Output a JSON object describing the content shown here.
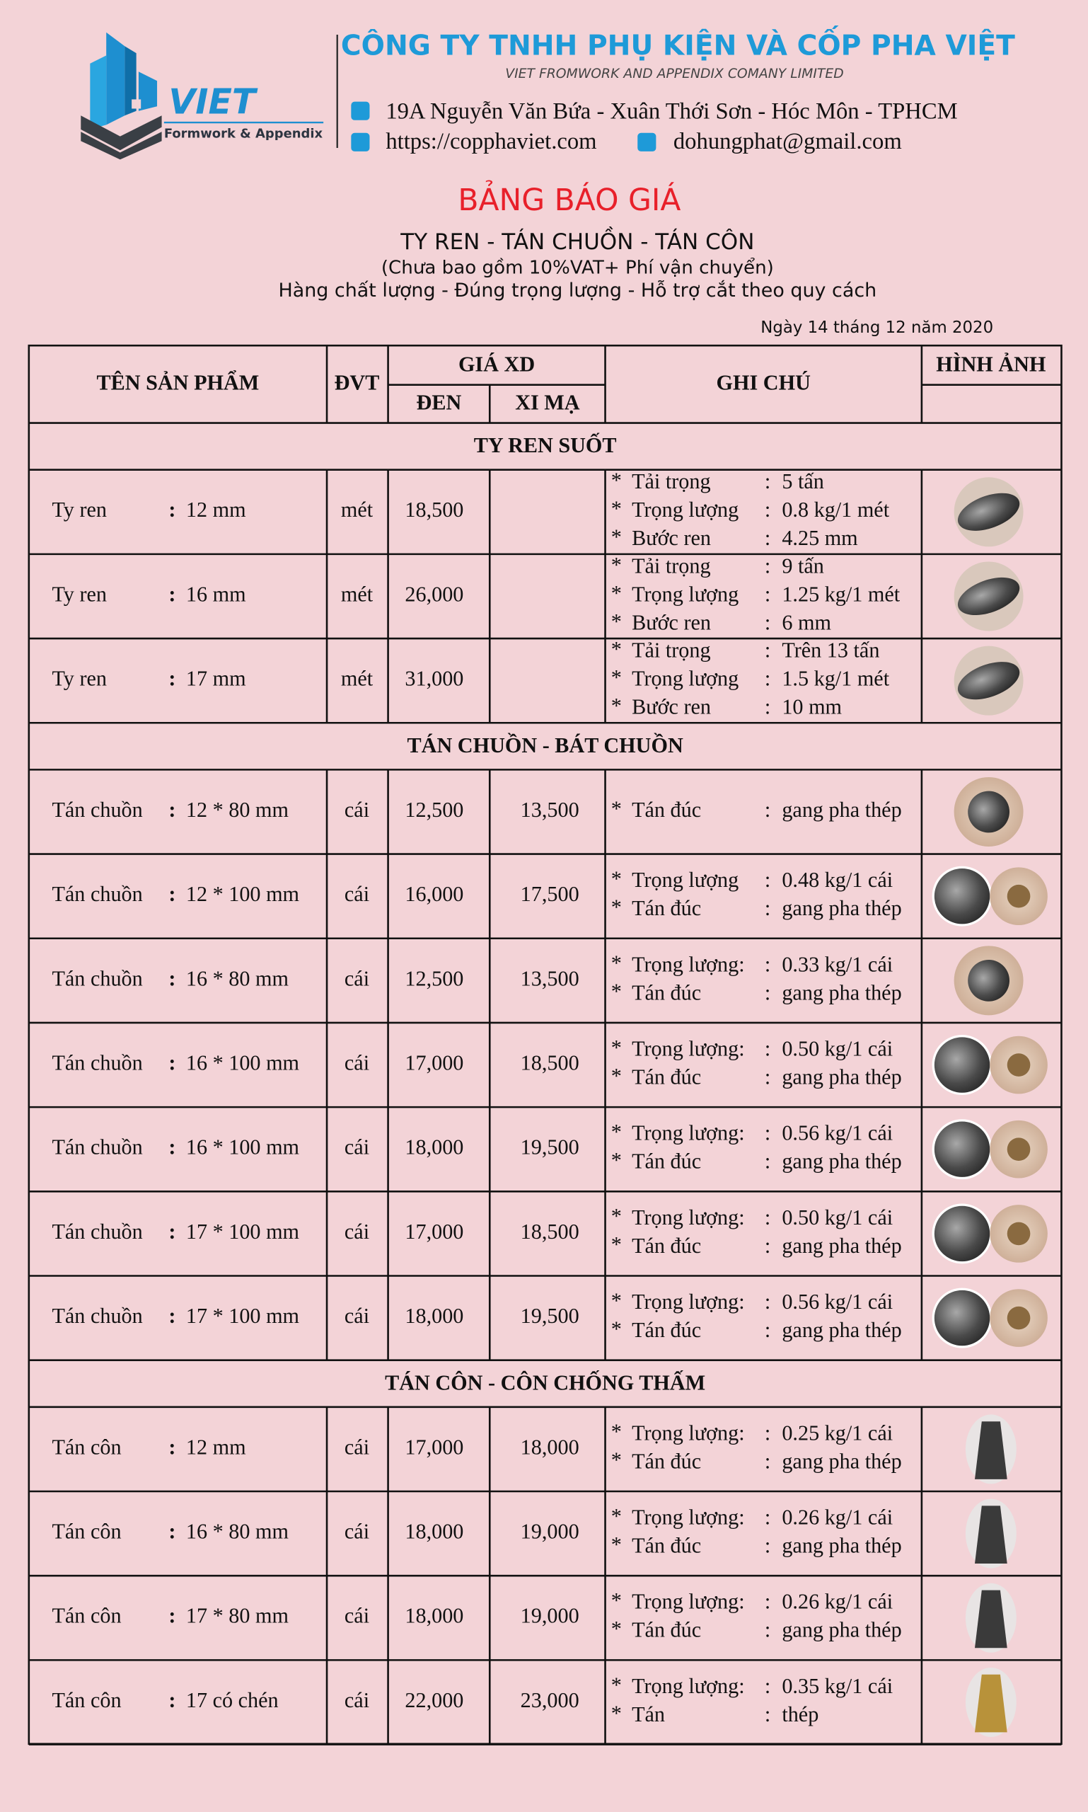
{
  "header": {
    "logo_text": "VIET",
    "logo_sub": "Formwork & Appendix",
    "company_name": "CÔNG TY TNHH PHỤ KIỆN VÀ CỐP PHA VIỆT",
    "company_name_en": "VIET FROMWORK AND APPENDIX COMANY LIMITED",
    "address": "19A Nguyễn Văn Bứa - Xuân Thới Sơn - Hóc Môn - TPHCM",
    "website": "https://copphaviet.com",
    "email": "dohungphat@gmail.com"
  },
  "title": "BẢNG BÁO GIÁ",
  "subtitle": "TY REN - TÁN CHUỒN - TÁN CÔN",
  "note": "(Chưa bao gồm 10%VAT+ Phí vận chuyển)",
  "tagline": "Hàng chất lượng - Đúng trọng lượng - Hỗ trợ cắt theo quy cách",
  "date": "Ngày 14 tháng 12 năm 2020",
  "table": {
    "headers": {
      "product": "TÊN SẢN PHẨM",
      "unit": "ĐVT",
      "price": "GIÁ XD",
      "black": "ĐEN",
      "plated": "XI MẠ",
      "note": "GHI CHÚ",
      "image": "HÌNH ẢNH"
    },
    "separator": ":",
    "bullet": "*",
    "sections": [
      {
        "title": "TY REN SUỐT",
        "rows": [
          {
            "name": "Ty ren",
            "spec": "12 mm",
            "unit": "mét",
            "black": "18,500",
            "plated": null,
            "notes": [
              {
                "label": "Tải trọng",
                "value": "5 tấn"
              },
              {
                "label": "Trọng lượng",
                "value": "0.8 kg/1 mét"
              },
              {
                "label": "Bước ren",
                "value": "4.25 mm"
              }
            ]
          },
          {
            "name": "Ty ren",
            "spec": "16 mm",
            "unit": "mét",
            "black": "26,000",
            "plated": null,
            "notes": [
              {
                "label": "Tải trọng",
                "value": "9 tấn"
              },
              {
                "label": "Trọng lượng",
                "value": "1.25 kg/1 mét"
              },
              {
                "label": "Bước ren",
                "value": "6 mm"
              }
            ]
          },
          {
            "name": "Ty ren",
            "spec": "17 mm",
            "unit": "mét",
            "black": "31,000",
            "plated": null,
            "notes": [
              {
                "label": "Tải trọng",
                "value": "Trên 13 tấn"
              },
              {
                "label": "Trọng lượng",
                "value": "1.5 kg/1 mét"
              },
              {
                "label": "Bước ren",
                "value": "10 mm"
              }
            ]
          }
        ]
      },
      {
        "title": "TÁN CHUỒN - BÁT CHUỒN",
        "rows": [
          {
            "name": "Tán chuồn",
            "spec": "12 * 80 mm",
            "unit": "cái",
            "black": "12,500",
            "plated": "13,500",
            "notes": [
              {
                "label": "Tán đúc",
                "value": "gang pha thép"
              }
            ]
          },
          {
            "name": "Tán chuồn",
            "spec": "12 * 100 mm",
            "unit": "cái",
            "black": "16,000",
            "plated": "17,500",
            "notes": [
              {
                "label": "Trọng lượng",
                "value": "0.48 kg/1 cái"
              },
              {
                "label": "Tán đúc",
                "value": "gang pha thép"
              }
            ]
          },
          {
            "name": "Tán chuồn",
            "spec": "16 * 80 mm",
            "unit": "cái",
            "black": "12,500",
            "plated": "13,500",
            "notes": [
              {
                "label": "Trọng lượng:",
                "value": "0.33 kg/1 cái"
              },
              {
                "label": "Tán đúc",
                "value": "gang pha thép"
              }
            ]
          },
          {
            "name": "Tán chuồn",
            "spec": "16 * 100 mm",
            "unit": "cái",
            "black": "17,000",
            "plated": "18,500",
            "notes": [
              {
                "label": "Trọng lượng:",
                "value": "0.50 kg/1 cái"
              },
              {
                "label": "Tán đúc",
                "value": "gang pha thép"
              }
            ]
          },
          {
            "name": "Tán chuồn",
            "spec": "16 * 100 mm",
            "unit": "cái",
            "black": "18,000",
            "plated": "19,500",
            "notes": [
              {
                "label": "Trọng lượng:",
                "value": "0.56 kg/1 cái"
              },
              {
                "label": "Tán đúc",
                "value": "gang pha thép"
              }
            ]
          },
          {
            "name": "Tán chuồn",
            "spec": "17 * 100 mm",
            "unit": "cái",
            "black": "17,000",
            "plated": "18,500",
            "notes": [
              {
                "label": "Trọng lượng:",
                "value": "0.50 kg/1 cái"
              },
              {
                "label": "Tán đúc",
                "value": "gang pha thép"
              }
            ]
          },
          {
            "name": "Tán chuồn",
            "spec": "17 * 100 mm",
            "unit": "cái",
            "black": "18,000",
            "plated": "19,500",
            "notes": [
              {
                "label": "Trọng lượng:",
                "value": "0.56 kg/1 cái"
              },
              {
                "label": "Tán đúc",
                "value": "gang pha thép"
              }
            ]
          }
        ]
      },
      {
        "title": "TÁN CÔN - CÔN CHỐNG THẤM",
        "rows": [
          {
            "name": "Tán côn",
            "spec": "12 mm",
            "unit": "cái",
            "black": "17,000",
            "plated": "18,000",
            "notes": [
              {
                "label": "Trọng lượng:",
                "value": "0.25 kg/1 cái"
              },
              {
                "label": "Tán đúc",
                "value": "gang pha thép"
              }
            ]
          },
          {
            "name": "Tán côn",
            "spec": "16 * 80 mm",
            "unit": "cái",
            "black": "18,000",
            "plated": "19,000",
            "notes": [
              {
                "label": "Trọng lượng:",
                "value": "0.26 kg/1 cái"
              },
              {
                "label": "Tán đúc",
                "value": "gang pha thép"
              }
            ]
          },
          {
            "name": "Tán côn",
            "spec": "17 * 80 mm",
            "unit": "cái",
            "black": "18,000",
            "plated": "19,000",
            "notes": [
              {
                "label": "Trọng lượng:",
                "value": "0.26 kg/1 cái"
              },
              {
                "label": "Tán đúc",
                "value": "gang pha thép"
              }
            ]
          },
          {
            "name": "Tán côn",
            "spec": "17 có chén",
            "unit": "cái",
            "black": "22,000",
            "plated": "23,000",
            "notes": [
              {
                "label": "Trọng lượng:",
                "value": "0.35 kg/1 cái"
              },
              {
                "label": "Tán",
                "value": "thép"
              }
            ]
          }
        ]
      }
    ]
  }
}
